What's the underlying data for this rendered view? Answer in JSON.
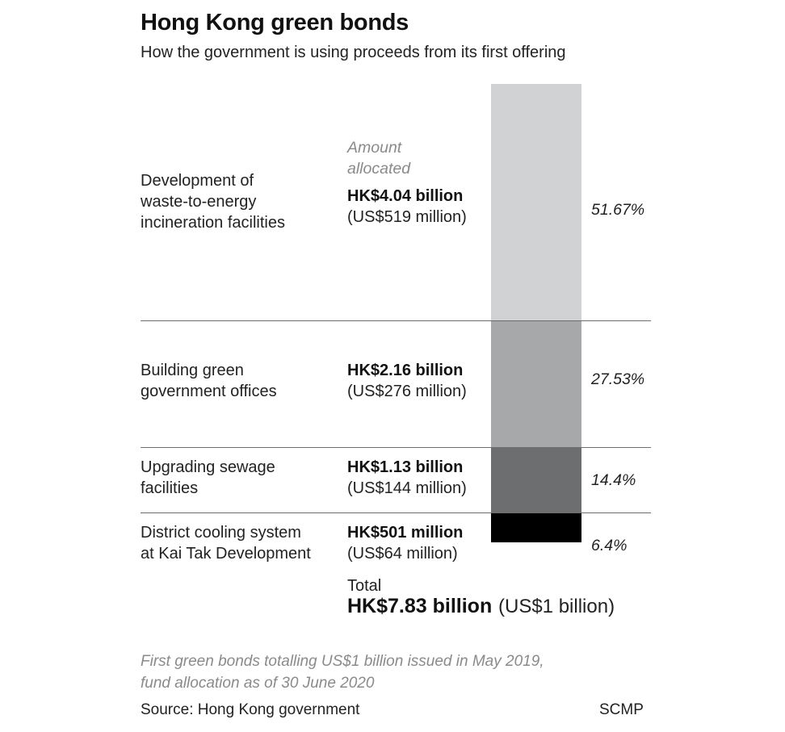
{
  "header": {
    "title": "Hong Kong green bonds",
    "subtitle": "How the government is using proceeds from its first offering"
  },
  "chart_data": {
    "type": "bar",
    "orientation": "stacked-vertical",
    "categories": [
      "Development of waste-to-energy incineration facilities",
      "Building green government offices",
      "Upgrading sewage facilities",
      "District cooling system at Kai Tak Development"
    ],
    "category_lines": [
      [
        "Development of",
        "waste-to-energy",
        "incineration facilities"
      ],
      [
        "Building green",
        "government offices"
      ],
      [
        "Upgrading sewage",
        "facilities"
      ],
      [
        "District cooling system",
        "at Kai Tak Development"
      ]
    ],
    "values": [
      51.67,
      27.53,
      14.4,
      6.4
    ],
    "percent_labels": [
      "51.67%",
      "27.53%",
      "14.4%",
      "6.4%"
    ],
    "amount_column_label": [
      "Amount",
      "allocated"
    ],
    "amounts_hkd": [
      "HK$4.04 billion",
      "HK$2.16 billion",
      "HK$1.13 billion",
      "HK$501 million"
    ],
    "amounts_usd": [
      "(US$519 million)",
      "(US$276 million)",
      "(US$144 million)",
      "(US$64 million)"
    ],
    "colors": [
      "#d1d2d4",
      "#a7a8aa",
      "#6d6e70",
      "#000000"
    ],
    "ylim": [
      0,
      100
    ]
  },
  "total": {
    "label": "Total",
    "hkd": "HK$7.83 billion",
    "usd": "(US$1 billion)"
  },
  "footer": {
    "note_lines": [
      "First green bonds totalling US$1 billion issued in May 2019,",
      "fund allocation as of 30 June 2020"
    ],
    "source": "Source: Hong Kong government",
    "credit": "SCMP"
  }
}
